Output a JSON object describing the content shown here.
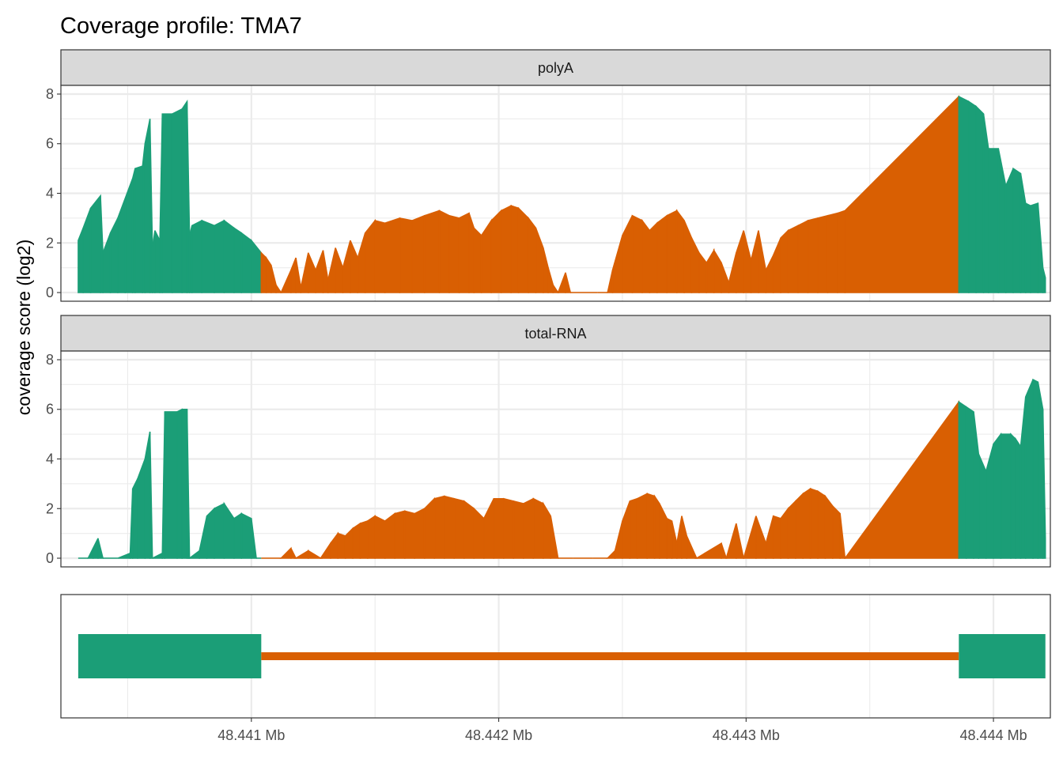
{
  "chart_data": {
    "type": "area",
    "title": "Coverage profile: TMA7",
    "ylabel": "coverage score (log2)",
    "xlabel": "",
    "x_unit": "Mb",
    "xlim": [
      48.44023,
      48.44423
    ],
    "ylim": [
      -0.35,
      8.35
    ],
    "x_ticks": [
      "48.441 Mb",
      "48.442 Mb",
      "48.443 Mb",
      "48.444 Mb"
    ],
    "x_tick_values": [
      48.441,
      48.442,
      48.443,
      48.444
    ],
    "y_ticks": [
      0,
      2,
      4,
      6,
      8
    ],
    "grid": true,
    "legend": "none",
    "colors": {
      "exon": "#1b9e77",
      "intron": "#d95f02",
      "strip_fill": "#d9d9d9",
      "grid": "#ebebeb"
    },
    "regions": [
      {
        "feature": "exon",
        "start": 48.4403,
        "end": 48.44104
      },
      {
        "feature": "intron",
        "start": 48.44104,
        "end": 48.44386
      },
      {
        "feature": "exon",
        "start": 48.44386,
        "end": 48.44421
      }
    ],
    "panels": [
      {
        "label": "polyA",
        "profile": [
          [
            48.4403,
            2.1
          ],
          [
            48.44032,
            2.6
          ],
          [
            48.44035,
            3.4
          ],
          [
            48.44039,
            3.9
          ],
          [
            48.4404,
            1.6
          ],
          [
            48.44043,
            2.4
          ],
          [
            48.44046,
            3.0
          ],
          [
            48.44049,
            3.8
          ],
          [
            48.44052,
            4.6
          ],
          [
            48.44053,
            5.0
          ],
          [
            48.44056,
            5.1
          ],
          [
            48.44057,
            6.0
          ],
          [
            48.44059,
            7.0
          ],
          [
            48.4406,
            1.8
          ],
          [
            48.44061,
            2.5
          ],
          [
            48.44063,
            2.1
          ],
          [
            48.44064,
            7.2
          ],
          [
            48.44068,
            7.2
          ],
          [
            48.44072,
            7.4
          ],
          [
            48.44074,
            7.7
          ],
          [
            48.44075,
            2.3
          ],
          [
            48.44076,
            2.7
          ],
          [
            48.4408,
            2.9
          ],
          [
            48.44085,
            2.7
          ],
          [
            48.44089,
            2.9
          ],
          [
            48.44093,
            2.6
          ],
          [
            48.44096,
            2.4
          ],
          [
            48.441,
            2.1
          ],
          [
            48.44104,
            1.6
          ],
          [
            48.44106,
            1.4
          ],
          [
            48.44108,
            1.1
          ],
          [
            48.4411,
            0.3
          ],
          [
            48.44112,
            0.0
          ],
          [
            48.44116,
            0.9
          ],
          [
            48.44118,
            1.4
          ],
          [
            48.4412,
            0.2
          ],
          [
            48.44123,
            1.6
          ],
          [
            48.44126,
            0.9
          ],
          [
            48.44129,
            1.7
          ],
          [
            48.44131,
            0.5
          ],
          [
            48.44134,
            1.8
          ],
          [
            48.44137,
            1.0
          ],
          [
            48.4414,
            2.1
          ],
          [
            48.44143,
            1.4
          ],
          [
            48.44146,
            2.4
          ],
          [
            48.4415,
            2.9
          ],
          [
            48.44154,
            2.8
          ],
          [
            48.4416,
            3.0
          ],
          [
            48.44165,
            2.9
          ],
          [
            48.4417,
            3.1
          ],
          [
            48.44176,
            3.3
          ],
          [
            48.4418,
            3.1
          ],
          [
            48.44184,
            3.0
          ],
          [
            48.44188,
            3.2
          ],
          [
            48.4419,
            2.6
          ],
          [
            48.44193,
            2.3
          ],
          [
            48.44197,
            2.9
          ],
          [
            48.44201,
            3.3
          ],
          [
            48.44205,
            3.5
          ],
          [
            48.44208,
            3.4
          ],
          [
            48.44212,
            3.0
          ],
          [
            48.44215,
            2.6
          ],
          [
            48.44218,
            1.8
          ],
          [
            48.4422,
            1.0
          ],
          [
            48.44222,
            0.3
          ],
          [
            48.44224,
            0.0
          ],
          [
            48.44227,
            0.8
          ],
          [
            48.44229,
            0.0
          ],
          [
            48.4424,
            0.0
          ],
          [
            48.44244,
            0.0
          ],
          [
            48.44246,
            0.9
          ],
          [
            48.4425,
            2.3
          ],
          [
            48.44254,
            3.1
          ],
          [
            48.44258,
            2.9
          ],
          [
            48.44261,
            2.5
          ],
          [
            48.44264,
            2.8
          ],
          [
            48.44268,
            3.1
          ],
          [
            48.44272,
            3.3
          ],
          [
            48.44275,
            2.9
          ],
          [
            48.44278,
            2.2
          ],
          [
            48.44281,
            1.6
          ],
          [
            48.44284,
            1.2
          ],
          [
            48.44287,
            1.7
          ],
          [
            48.4429,
            1.2
          ],
          [
            48.44293,
            0.4
          ],
          [
            48.44296,
            1.6
          ],
          [
            48.44299,
            2.5
          ],
          [
            48.44302,
            1.3
          ],
          [
            48.44305,
            2.5
          ],
          [
            48.44308,
            0.9
          ],
          [
            48.44311,
            1.5
          ],
          [
            48.44314,
            2.2
          ],
          [
            48.44317,
            2.5
          ],
          [
            48.44321,
            2.7
          ],
          [
            48.44325,
            2.9
          ],
          [
            48.44329,
            3.0
          ],
          [
            48.44333,
            3.1
          ],
          [
            48.44337,
            3.2
          ],
          [
            48.4434,
            3.3
          ],
          [
            48.44386,
            7.9
          ],
          [
            48.4439,
            7.7
          ],
          [
            48.44393,
            7.5
          ],
          [
            48.44396,
            7.2
          ],
          [
            48.44398,
            5.8
          ],
          [
            48.44402,
            5.8
          ],
          [
            48.44405,
            4.3
          ],
          [
            48.44408,
            5.0
          ],
          [
            48.44411,
            4.8
          ],
          [
            48.44413,
            3.6
          ],
          [
            48.44415,
            3.5
          ],
          [
            48.44418,
            3.6
          ],
          [
            48.4442,
            1.0
          ],
          [
            48.44421,
            0.6
          ]
        ]
      },
      {
        "label": "total-RNA",
        "profile": [
          [
            48.4403,
            0.0
          ],
          [
            48.44034,
            0.0
          ],
          [
            48.44036,
            0.4
          ],
          [
            48.44038,
            0.8
          ],
          [
            48.4404,
            0.0
          ],
          [
            48.44046,
            0.0
          ],
          [
            48.44051,
            0.2
          ],
          [
            48.44052,
            2.8
          ],
          [
            48.44054,
            3.2
          ],
          [
            48.44057,
            4.0
          ],
          [
            48.44059,
            5.1
          ],
          [
            48.4406,
            0.0
          ],
          [
            48.44064,
            0.2
          ],
          [
            48.44065,
            5.9
          ],
          [
            48.4407,
            5.9
          ],
          [
            48.44072,
            6.0
          ],
          [
            48.44074,
            6.0
          ],
          [
            48.44075,
            0.0
          ],
          [
            48.44079,
            0.3
          ],
          [
            48.44082,
            1.7
          ],
          [
            48.44085,
            2.0
          ],
          [
            48.44089,
            2.2
          ],
          [
            48.44093,
            1.6
          ],
          [
            48.44096,
            1.8
          ],
          [
            48.441,
            1.6
          ],
          [
            48.44102,
            0.0
          ],
          [
            48.44104,
            0.0
          ],
          [
            48.44112,
            0.0
          ],
          [
            48.44116,
            0.4
          ],
          [
            48.44118,
            0.0
          ],
          [
            48.44123,
            0.3
          ],
          [
            48.44128,
            0.0
          ],
          [
            48.44132,
            0.6
          ],
          [
            48.44135,
            1.0
          ],
          [
            48.44138,
            0.9
          ],
          [
            48.44141,
            1.2
          ],
          [
            48.44144,
            1.4
          ],
          [
            48.44147,
            1.5
          ],
          [
            48.4415,
            1.7
          ],
          [
            48.44154,
            1.5
          ],
          [
            48.44158,
            1.8
          ],
          [
            48.44162,
            1.9
          ],
          [
            48.44166,
            1.8
          ],
          [
            48.4417,
            2.0
          ],
          [
            48.44174,
            2.4
          ],
          [
            48.44178,
            2.5
          ],
          [
            48.44182,
            2.4
          ],
          [
            48.44186,
            2.3
          ],
          [
            48.4419,
            2.0
          ],
          [
            48.44194,
            1.6
          ],
          [
            48.44198,
            2.4
          ],
          [
            48.44202,
            2.4
          ],
          [
            48.44206,
            2.3
          ],
          [
            48.4421,
            2.2
          ],
          [
            48.44214,
            2.4
          ],
          [
            48.44218,
            2.2
          ],
          [
            48.44221,
            1.7
          ],
          [
            48.44224,
            0.0
          ],
          [
            48.4423,
            0.0
          ],
          [
            48.44238,
            0.0
          ],
          [
            48.44244,
            0.0
          ],
          [
            48.44247,
            0.3
          ],
          [
            48.4425,
            1.5
          ],
          [
            48.44253,
            2.3
          ],
          [
            48.44256,
            2.4
          ],
          [
            48.4426,
            2.6
          ],
          [
            48.44263,
            2.5
          ],
          [
            48.44265,
            2.2
          ],
          [
            48.44268,
            1.6
          ],
          [
            48.4427,
            1.5
          ],
          [
            48.44272,
            0.6
          ],
          [
            48.44274,
            1.7
          ],
          [
            48.44276,
            0.9
          ],
          [
            48.4428,
            0.0
          ],
          [
            48.4429,
            0.6
          ],
          [
            48.44292,
            0.0
          ],
          [
            48.44296,
            1.4
          ],
          [
            48.44299,
            0.0
          ],
          [
            48.44304,
            1.7
          ],
          [
            48.44308,
            0.6
          ],
          [
            48.44311,
            1.7
          ],
          [
            48.44314,
            1.6
          ],
          [
            48.44317,
            2.0
          ],
          [
            48.4432,
            2.3
          ],
          [
            48.44323,
            2.6
          ],
          [
            48.44326,
            2.8
          ],
          [
            48.44329,
            2.7
          ],
          [
            48.44332,
            2.5
          ],
          [
            48.44335,
            2.1
          ],
          [
            48.44338,
            1.8
          ],
          [
            48.4434,
            0.0
          ],
          [
            48.44386,
            6.3
          ],
          [
            48.44389,
            6.1
          ],
          [
            48.44392,
            5.9
          ],
          [
            48.44394,
            4.2
          ],
          [
            48.44397,
            3.5
          ],
          [
            48.444,
            4.6
          ],
          [
            48.44403,
            5.0
          ],
          [
            48.44407,
            5.0
          ],
          [
            48.44409,
            4.8
          ],
          [
            48.44411,
            4.5
          ],
          [
            48.44413,
            6.5
          ],
          [
            48.44416,
            7.2
          ],
          [
            48.44418,
            7.1
          ],
          [
            48.4442,
            6.0
          ],
          [
            48.44421,
            0.8
          ]
        ]
      }
    ]
  }
}
